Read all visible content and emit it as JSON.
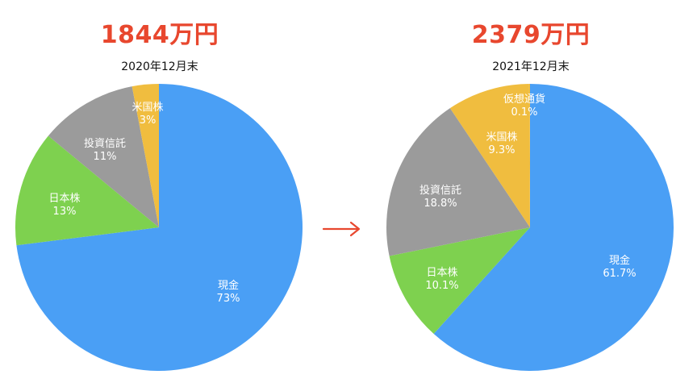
{
  "chart_data": [
    {
      "type": "pie",
      "title": "1844万円",
      "subtitle": "2020年12月末",
      "slices": [
        {
          "label": "現金",
          "value": 73,
          "value_label": "73%",
          "color": "#4a9ff5"
        },
        {
          "label": "日本株",
          "value": 13,
          "value_label": "13%",
          "color": "#7ed14f"
        },
        {
          "label": "投資信託",
          "value": 11,
          "value_label": "11%",
          "color": "#9b9b9b"
        },
        {
          "label": "米国株",
          "value": 3,
          "value_label": "3%",
          "color": "#f0bd3f"
        }
      ]
    },
    {
      "type": "pie",
      "title": "2379万円",
      "subtitle": "2021年12月末",
      "slices": [
        {
          "label": "現金",
          "value": 61.7,
          "value_label": "61.7%",
          "color": "#4a9ff5"
        },
        {
          "label": "日本株",
          "value": 10.1,
          "value_label": "10.1%",
          "color": "#7ed14f"
        },
        {
          "label": "投資信託",
          "value": 18.8,
          "value_label": "18.8%",
          "color": "#9b9b9b"
        },
        {
          "label": "米国株",
          "value": 9.3,
          "value_label": "9.3%",
          "color": "#f0bd3f"
        },
        {
          "label": "仮想通貨",
          "value": 0.1,
          "value_label": "0.1%",
          "color": "#f0bd3f"
        }
      ]
    }
  ],
  "arrow": {
    "symbol": "→",
    "color": "#e8472e"
  }
}
